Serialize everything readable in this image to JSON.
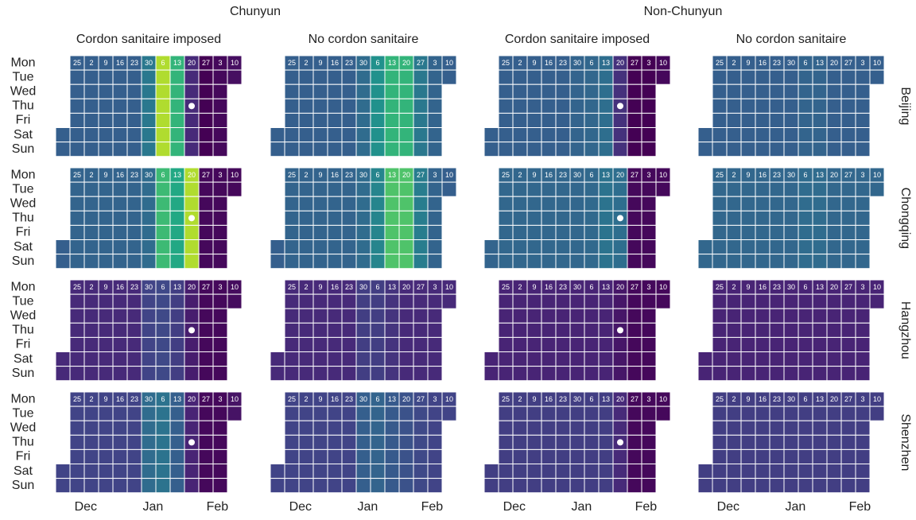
{
  "chart_data": {
    "type": "calendar_heatmap",
    "column_groups": [
      "Chunyun",
      "Non-Chunyun"
    ],
    "panel_titles": [
      "Cordon sanitaire imposed",
      "No cordon sanitaire"
    ],
    "cities": [
      "Beijing",
      "Chongqing",
      "Hangzhou",
      "Shenzhen"
    ],
    "days": [
      "Mon",
      "Tue",
      "Wed",
      "Thu",
      "Fri",
      "Sat",
      "Sun"
    ],
    "weeks": [
      null,
      "25",
      "2",
      "9",
      "16",
      "23",
      "30",
      "6",
      "13",
      "20",
      "27",
      "3",
      "10"
    ],
    "months": [
      "Dec",
      "Jan",
      "Feb"
    ],
    "color_scale": "viridis",
    "vlim": [
      0,
      1
    ],
    "values": [
      [
        [
          0.3,
          0.3,
          0.3,
          0.3,
          0.3,
          0.3,
          0.4,
          0.88,
          0.65,
          0.12,
          0.0,
          0.02,
          0.04
        ],
        [
          0.3,
          0.3,
          0.3,
          0.3,
          0.3,
          0.3,
          0.35,
          0.5,
          0.65,
          0.65,
          0.4,
          0.32,
          0.3
        ],
        [
          0.3,
          0.3,
          0.3,
          0.3,
          0.3,
          0.3,
          0.32,
          0.33,
          0.36,
          0.14,
          0.0,
          0.0,
          0.02
        ],
        [
          0.3,
          0.3,
          0.3,
          0.3,
          0.3,
          0.3,
          0.3,
          0.32,
          0.32,
          0.3,
          0.3,
          0.3,
          0.3
        ]
      ],
      [
        [
          0.3,
          0.32,
          0.32,
          0.32,
          0.32,
          0.32,
          0.35,
          0.68,
          0.6,
          0.88,
          0.02,
          0.02,
          0.02
        ],
        [
          0.3,
          0.32,
          0.32,
          0.32,
          0.32,
          0.32,
          0.35,
          0.45,
          0.72,
          0.72,
          0.42,
          0.32,
          0.3
        ],
        [
          0.32,
          0.33,
          0.33,
          0.33,
          0.33,
          0.33,
          0.33,
          0.34,
          0.38,
          0.36,
          0.02,
          0.02,
          0.02
        ],
        [
          0.33,
          0.33,
          0.33,
          0.33,
          0.33,
          0.33,
          0.33,
          0.35,
          0.35,
          0.33,
          0.33,
          0.33,
          0.33
        ]
      ],
      [
        [
          0.12,
          0.12,
          0.12,
          0.12,
          0.12,
          0.12,
          0.2,
          0.22,
          0.18,
          0.08,
          0.02,
          0.02,
          0.03
        ],
        [
          0.12,
          0.12,
          0.12,
          0.12,
          0.12,
          0.12,
          0.18,
          0.18,
          0.15,
          0.12,
          0.12,
          0.12,
          0.12
        ],
        [
          0.1,
          0.1,
          0.1,
          0.1,
          0.1,
          0.1,
          0.1,
          0.1,
          0.1,
          0.06,
          0.02,
          0.02,
          0.02
        ],
        [
          0.1,
          0.1,
          0.1,
          0.1,
          0.1,
          0.1,
          0.1,
          0.1,
          0.1,
          0.1,
          0.1,
          0.1,
          0.1
        ]
      ],
      [
        [
          0.2,
          0.2,
          0.2,
          0.2,
          0.2,
          0.2,
          0.35,
          0.38,
          0.3,
          0.1,
          0.02,
          0.02,
          0.05
        ],
        [
          0.2,
          0.2,
          0.2,
          0.2,
          0.2,
          0.2,
          0.3,
          0.32,
          0.28,
          0.25,
          0.22,
          0.2,
          0.2
        ],
        [
          0.18,
          0.18,
          0.18,
          0.18,
          0.18,
          0.18,
          0.18,
          0.18,
          0.18,
          0.12,
          0.02,
          0.02,
          0.02
        ],
        [
          0.18,
          0.18,
          0.18,
          0.18,
          0.18,
          0.18,
          0.18,
          0.18,
          0.18,
          0.18,
          0.18,
          0.18,
          0.18
        ]
      ]
    ]
  }
}
